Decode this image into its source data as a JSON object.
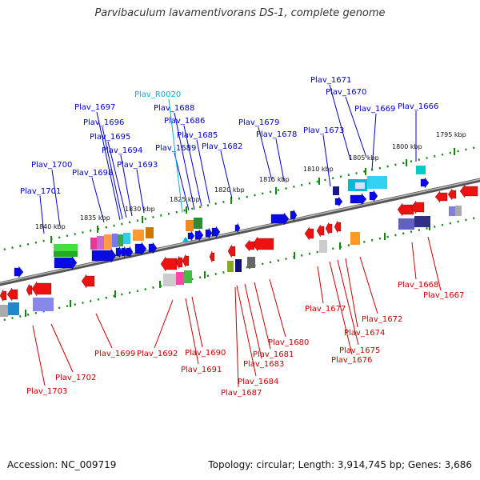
{
  "title": "Parvibaculum lavamentivorans DS-1, complete genome",
  "footer": {
    "accession": "Accession: NC_009719",
    "summary": "Topology: circular; Length: 3,914,745 bp; Genes: 3,686"
  },
  "colors": {
    "plus_label": "#0000cc",
    "minus_label": "#cc0000",
    "rna_label": "#00b0e0",
    "backbone": "#777777",
    "tick": "#118811"
  },
  "scale_labels": [
    "1795 kbp",
    "1800 kbp",
    "1805 kbp",
    "1810 kbp",
    "1815 kbp",
    "1820 kbp",
    "1825 kbp",
    "1830 kbp",
    "1835 kbp",
    "1840 kbp"
  ],
  "plus_labels": [
    "Plav_1671",
    "Plav_1670",
    "Plav_1669",
    "Plav_1666",
    "Plav_1673",
    "Plav_1679",
    "Plav_1678",
    "Plav_1688",
    "Plav_1686",
    "Plav_1685",
    "Plav_1689",
    "Plav_1682",
    "Plav_1697",
    "Plav_1696",
    "Plav_1695",
    "Plav_1694",
    "Plav_1693",
    "Plav_1698",
    "Plav_1700",
    "Plav_1701"
  ],
  "rna_labels": [
    "Plav_R0020"
  ],
  "minus_labels": [
    "Plav_1668",
    "Plav_1667",
    "Plav_1677",
    "Plav_1672",
    "Plav_1674",
    "Plav_1675",
    "Plav_1676",
    "Plav_1680",
    "Plav_1681",
    "Plav_1683",
    "Plav_1684",
    "Plav_1687",
    "Plav_1690",
    "Plav_1691",
    "Plav_1692",
    "Plav_1699",
    "Plav_1702",
    "Plav_1703"
  ]
}
